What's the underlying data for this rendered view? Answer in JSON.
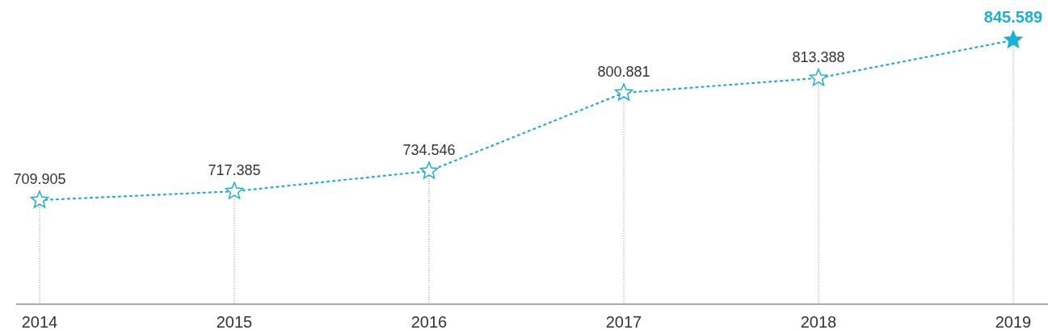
{
  "chart_data": {
    "type": "line",
    "categories": [
      "2014",
      "2015",
      "2016",
      "2017",
      "2018",
      "2019"
    ],
    "series": [
      {
        "color": "#1aafd9",
        "values": [
          709.905,
          717.385,
          734.546,
          800.881,
          813.388,
          845.589
        ]
      }
    ],
    "tick_labels": "x",
    "data_labels": true,
    "marker": "star",
    "line_style": "dotted",
    "grid": "x"
  }
}
